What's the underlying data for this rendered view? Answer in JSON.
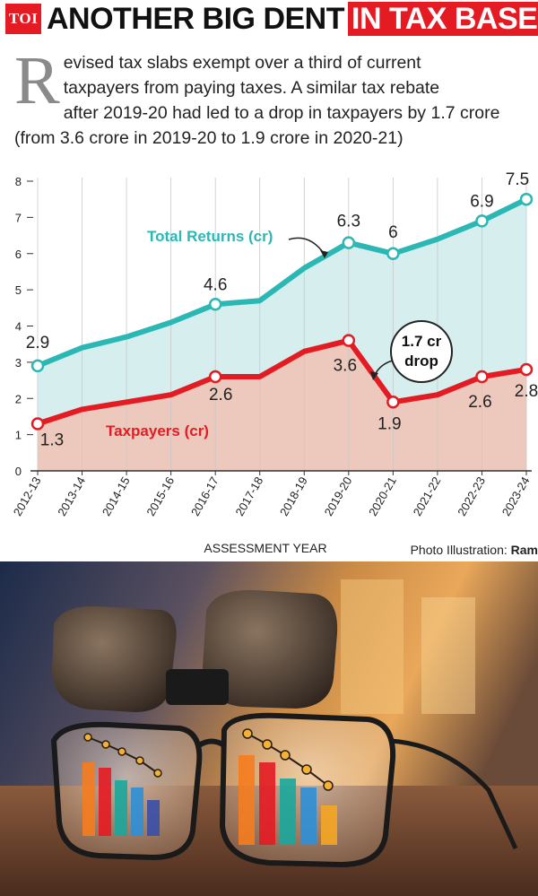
{
  "header": {
    "logo": "TOI",
    "headline_part1": "ANOTHER BIG DENT",
    "headline_part2": "IN TAX BASE"
  },
  "intro": {
    "dropcap": "R",
    "line1": "evised tax slabs exempt over a third of current",
    "line2": "taxpayers from paying taxes. A similar tax rebate",
    "line3": "after 2019-20 had led to a drop in taxpayers by 1.7 crore",
    "line4": "(from 3.6 crore in 2019-20 to 1.9 crore in 2020-21)"
  },
  "chart_data": {
    "type": "area",
    "categories": [
      "2012-13",
      "2013-14",
      "2014-15",
      "2015-16",
      "2016-17",
      "2017-18",
      "2018-19",
      "2019-20",
      "2020-21",
      "2021-22",
      "2022-23",
      "2023-24"
    ],
    "series": [
      {
        "name": "Total Returns (cr)",
        "values": [
          2.9,
          3.4,
          3.7,
          4.1,
          4.6,
          4.7,
          5.6,
          6.3,
          6.0,
          6.4,
          6.9,
          7.5
        ],
        "color": "#2bb8b5",
        "fill": "#d6eeee"
      },
      {
        "name": "Taxpayers (cr)",
        "values": [
          1.3,
          1.7,
          1.9,
          2.1,
          2.6,
          2.6,
          3.3,
          3.6,
          1.9,
          2.1,
          2.6,
          2.8
        ],
        "color": "#e41b23",
        "fill": "#ecc9bc"
      }
    ],
    "point_labels": {
      "total_returns": [
        {
          "index": 0,
          "text": "2.9"
        },
        {
          "index": 4,
          "text": "4.6"
        },
        {
          "index": 7,
          "text": "6.3"
        },
        {
          "index": 8,
          "text": "6"
        },
        {
          "index": 10,
          "text": "6.9"
        },
        {
          "index": 11,
          "text": "7.5"
        }
      ],
      "taxpayers": [
        {
          "index": 0,
          "text": "1.3"
        },
        {
          "index": 4,
          "text": "2.6"
        },
        {
          "index": 7,
          "text": "3.6"
        },
        {
          "index": 8,
          "text": "1.9"
        },
        {
          "index": 10,
          "text": "2.6"
        },
        {
          "index": 11,
          "text": "2.8"
        }
      ]
    },
    "marker_indices": [
      0,
      4,
      7,
      8,
      10,
      11
    ],
    "annotation": {
      "line1": "1.7 cr",
      "line2": "drop"
    },
    "yticks": [
      "0",
      "1",
      "2",
      "3",
      "4",
      "5",
      "6",
      "7",
      "8"
    ],
    "ylim": [
      0,
      8
    ],
    "xlabel": "ASSESSMENT YEAR",
    "ylabel": "",
    "grid": "vertical"
  },
  "credit": {
    "label": "Photo Illustration:",
    "name": "Ram"
  },
  "photo": {
    "left_bar_colors": [
      "#f57c1f",
      "#e41b23",
      "#1aa79c",
      "#2e8fd8",
      "#3a4fa8"
    ],
    "right_bar_colors": [
      "#f57c1f",
      "#e41b23",
      "#1aa79c",
      "#2e8fd8",
      "#f5a623"
    ]
  }
}
